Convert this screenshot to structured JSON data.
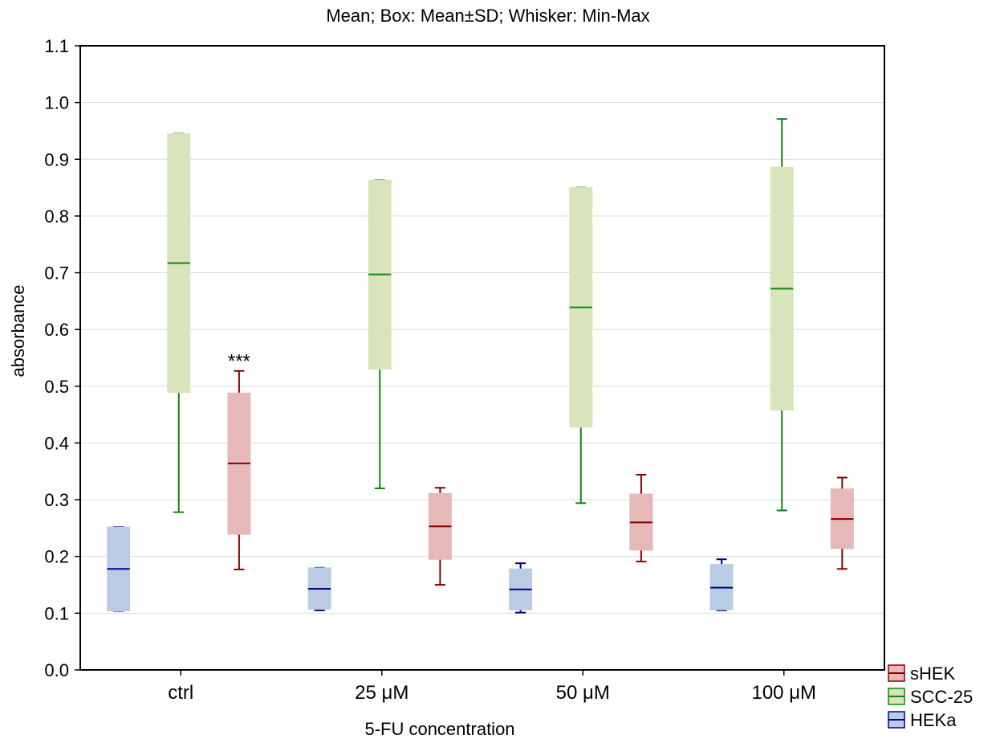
{
  "chart_data": {
    "type": "box",
    "title": "Mean; Box: Mean±SD; Whisker: Min-Max",
    "xlabel": "5-FU concentration",
    "ylabel": "absorbance",
    "ylim": [
      0.0,
      1.1
    ],
    "yticks": [
      "0.0",
      "0.1",
      "0.2",
      "0.3",
      "0.4",
      "0.5",
      "0.6",
      "0.7",
      "0.8",
      "0.9",
      "1.0",
      "1.1"
    ],
    "categories": [
      "ctrl",
      "25 μM",
      "50 μM",
      "100 μM"
    ],
    "grid": true,
    "legend_position": "bottom-right",
    "annotations": [
      {
        "text": "***",
        "category": "ctrl",
        "series": "sHEK"
      }
    ],
    "series": [
      {
        "name": "HEKa",
        "fill": "#b9cce4",
        "stroke": "#00008b",
        "stats": [
          {
            "mean": 0.178,
            "box_low": 0.104,
            "box_high": 0.252,
            "min": 0.104,
            "max": 0.252
          },
          {
            "mean": 0.143,
            "box_low": 0.107,
            "box_high": 0.18,
            "min": 0.105,
            "max": 0.18
          },
          {
            "mean": 0.142,
            "box_low": 0.106,
            "box_high": 0.178,
            "min": 0.101,
            "max": 0.188
          },
          {
            "mean": 0.145,
            "box_low": 0.106,
            "box_high": 0.186,
            "min": 0.105,
            "max": 0.195
          }
        ]
      },
      {
        "name": "SCC-25",
        "fill": "#d8e4bc",
        "stroke": "#0a8a0a",
        "stats": [
          {
            "mean": 0.717,
            "box_low": 0.489,
            "box_high": 0.945,
            "min": 0.278,
            "max": 0.945
          },
          {
            "mean": 0.697,
            "box_low": 0.53,
            "box_high": 0.863,
            "min": 0.32,
            "max": 0.863
          },
          {
            "mean": 0.639,
            "box_low": 0.428,
            "box_high": 0.85,
            "min": 0.294,
            "max": 0.85
          },
          {
            "mean": 0.672,
            "box_low": 0.458,
            "box_high": 0.886,
            "min": 0.281,
            "max": 0.971
          }
        ]
      },
      {
        "name": "sHEK",
        "fill": "#e6b9b8",
        "stroke": "#8b0000",
        "stats": [
          {
            "mean": 0.364,
            "box_low": 0.239,
            "box_high": 0.488,
            "min": 0.177,
            "max": 0.527
          },
          {
            "mean": 0.253,
            "box_low": 0.195,
            "box_high": 0.311,
            "min": 0.15,
            "max": 0.321
          },
          {
            "mean": 0.26,
            "box_low": 0.211,
            "box_high": 0.31,
            "min": 0.191,
            "max": 0.344
          },
          {
            "mean": 0.266,
            "box_low": 0.214,
            "box_high": 0.319,
            "min": 0.178,
            "max": 0.339
          }
        ]
      }
    ],
    "legend": [
      {
        "name": "sHEK",
        "fill": "#e6b9b8",
        "stroke": "#8b0000"
      },
      {
        "name": "SCC-25",
        "fill": "#d8e4bc",
        "stroke": "#0a8a0a"
      },
      {
        "name": "HEKa",
        "fill": "#b9cce4",
        "stroke": "#00008b"
      }
    ]
  }
}
